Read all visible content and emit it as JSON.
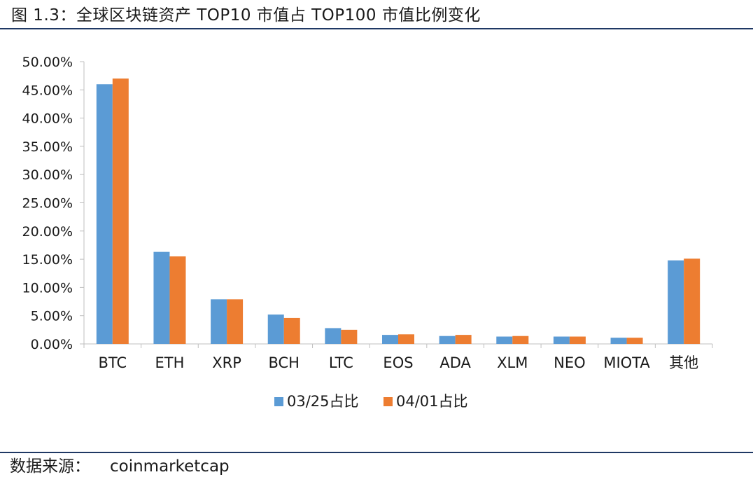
{
  "figure": {
    "title": "图 1.3：全球区块链资产 TOP10 市值占 TOP100 市值比例变化",
    "source_label": "数据来源：",
    "source_value": "coinmarketcap"
  },
  "colors": {
    "series_1": "#5b9bd5",
    "series_2": "#ed7d31",
    "rule": "#1f3864",
    "axis": "#bfbfbf"
  },
  "chart_data": {
    "type": "bar",
    "title": "",
    "xlabel": "",
    "ylabel": "",
    "ylim": [
      0,
      50
    ],
    "yticks": [
      0,
      5,
      10,
      15,
      20,
      25,
      30,
      35,
      40,
      45,
      50
    ],
    "ytick_labels": [
      "0.00%",
      "5.00%",
      "10.00%",
      "15.00%",
      "20.00%",
      "25.00%",
      "30.00%",
      "35.00%",
      "40.00%",
      "45.00%",
      "50.00%"
    ],
    "grid": false,
    "legend_position": "bottom",
    "categories": [
      "BTC",
      "ETH",
      "XRP",
      "BCH",
      "LTC",
      "EOS",
      "ADA",
      "XLM",
      "NEO",
      "MIOTA",
      "其他"
    ],
    "series": [
      {
        "name": "03/25占比",
        "values": [
          46.0,
          16.3,
          7.9,
          5.2,
          2.8,
          1.6,
          1.4,
          1.3,
          1.3,
          1.1,
          14.8
        ]
      },
      {
        "name": "04/01占比",
        "values": [
          47.0,
          15.5,
          7.9,
          4.6,
          2.5,
          1.7,
          1.6,
          1.4,
          1.3,
          1.1,
          15.1
        ]
      }
    ]
  }
}
